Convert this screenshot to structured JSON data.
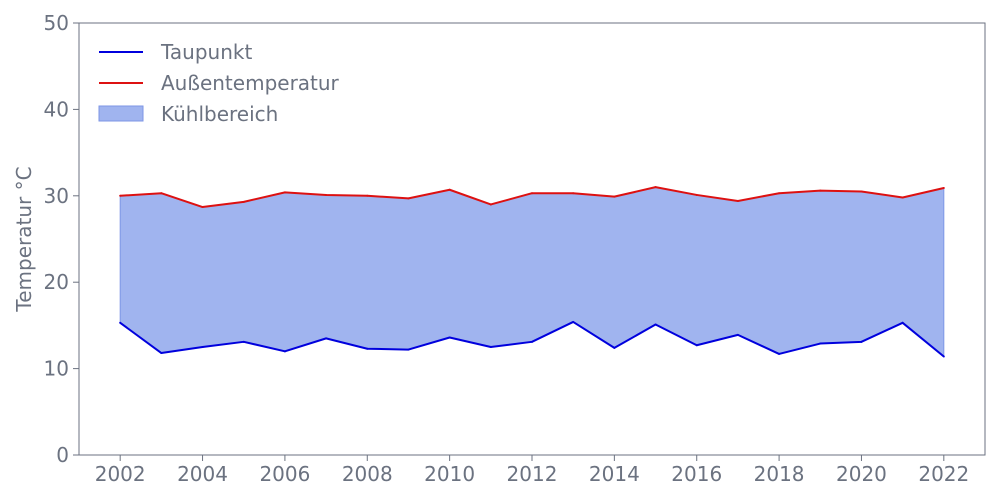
{
  "chart_data": {
    "type": "area",
    "title": "",
    "xlabel": "",
    "ylabel": "Temperatur °C",
    "x": [
      2002,
      2003,
      2004,
      2005,
      2006,
      2007,
      2008,
      2009,
      2010,
      2011,
      2012,
      2013,
      2014,
      2015,
      2016,
      2017,
      2018,
      2019,
      2020,
      2021,
      2022
    ],
    "series": [
      {
        "name": "Taupunkt",
        "type": "line",
        "color": "#0000dd",
        "values": [
          15.3,
          11.8,
          12.5,
          13.1,
          12.0,
          13.5,
          12.3,
          12.2,
          13.6,
          12.5,
          13.1,
          15.4,
          12.4,
          15.1,
          12.7,
          13.9,
          11.7,
          12.9,
          13.1,
          15.3,
          11.4
        ]
      },
      {
        "name": "Außentemperatur",
        "type": "line",
        "color": "#dd1111",
        "values": [
          30.0,
          30.3,
          28.7,
          29.3,
          30.4,
          30.1,
          30.0,
          29.7,
          30.7,
          29.0,
          30.3,
          30.3,
          29.9,
          31.0,
          30.1,
          29.4,
          30.3,
          30.6,
          30.5,
          29.8,
          30.9
        ]
      }
    ],
    "fill": {
      "name": "Kühlbereich",
      "between": [
        "Taupunkt",
        "Außentemperatur"
      ],
      "color": "#a0b4ef",
      "edge_color": "#7e96e6"
    },
    "xlim": [
      2001,
      2023
    ],
    "ylim": [
      0,
      50
    ],
    "xticks": [
      2002,
      2004,
      2006,
      2008,
      2010,
      2012,
      2014,
      2016,
      2018,
      2020,
      2022
    ],
    "yticks": [
      0,
      10,
      20,
      30,
      40,
      50
    ],
    "grid": false,
    "legend_position": "top-left",
    "axis_color": "#6b7280"
  }
}
